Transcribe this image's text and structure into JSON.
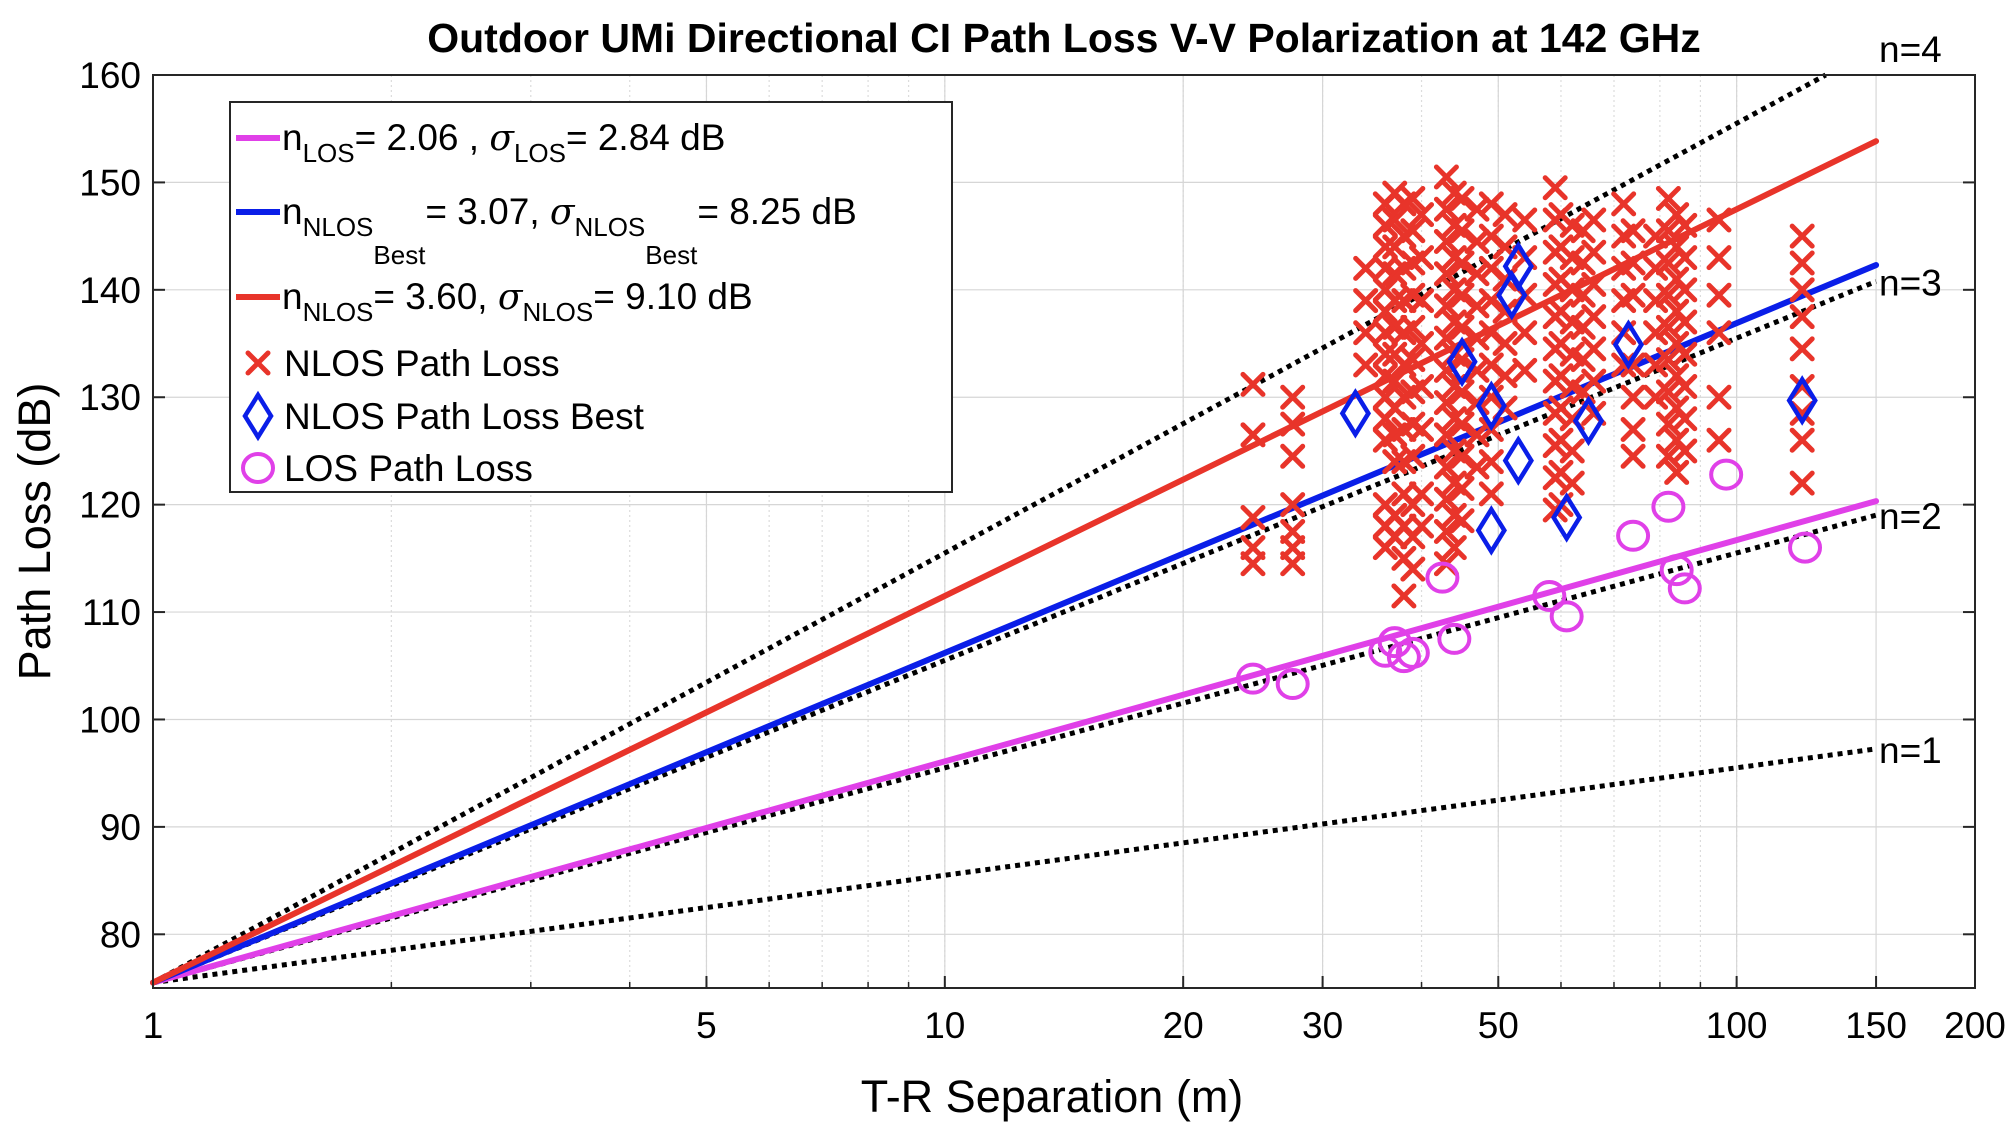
{
  "chart_data": {
    "type": "scatter",
    "title": "Outdoor UMi Directional CI Path Loss V-V Polarization at 142 GHz",
    "xlabel": "T-R Separation (m)",
    "ylabel": "Path Loss (dB)",
    "x_scale": "log",
    "xlim": [
      1,
      200
    ],
    "ylim": [
      75,
      160
    ],
    "x_ticks": [
      1,
      5,
      10,
      20,
      30,
      50,
      100,
      150,
      200
    ],
    "y_ticks": [
      80,
      90,
      100,
      110,
      120,
      130,
      140,
      150,
      160
    ],
    "grid": true,
    "legend_position": "top-left",
    "fspl_1m_db": 75.5,
    "reference_lines": [
      {
        "label": "n=1",
        "n": 1,
        "color": "#000000"
      },
      {
        "label": "n=2",
        "n": 2,
        "color": "#000000"
      },
      {
        "label": "n=3",
        "n": 3,
        "color": "#000000"
      },
      {
        "label": "n=4",
        "n": 4,
        "color": "#000000"
      }
    ],
    "fit_lines": [
      {
        "n": 2.06,
        "sigma_db": 2.84,
        "color": "#e040e8",
        "x_range": [
          1,
          150
        ],
        "legend": {
          "pre": "n",
          "sub": "LOS",
          "mid": "= 2.06 , ",
          "sigma": "σ",
          "sub2": "LOS",
          "post": "= 2.84 dB"
        }
      },
      {
        "n": 3.07,
        "sigma_db": 8.25,
        "color": "#0a1ee8",
        "x_range": [
          1,
          150
        ],
        "legend": {
          "pre": "n",
          "sub": "NLOS",
          "subsub": "Best",
          "mid": "= 3.07,  ",
          "sigma": "σ",
          "sub2": "NLOS",
          "subsub2": "Best",
          "post": "= 8.25 dB"
        }
      },
      {
        "n": 3.6,
        "sigma_db": 9.1,
        "color": "#e8342a",
        "x_range": [
          1,
          150
        ],
        "legend": {
          "pre": "n",
          "sub": "NLOS",
          "mid": "= 3.60,  ",
          "sigma": "σ",
          "sub2": "NLOS",
          "post": "= 9.10 dB"
        }
      }
    ],
    "series": [
      {
        "name": "NLOS Path Loss",
        "marker": "x",
        "color": "#e8342a",
        "points": [
          [
            24.5,
            131.2
          ],
          [
            24.5,
            126.5
          ],
          [
            24.5,
            118.8
          ],
          [
            24.5,
            116.0
          ],
          [
            24.5,
            114.5
          ],
          [
            27.5,
            130.0
          ],
          [
            27.5,
            127.5
          ],
          [
            27.5,
            124.5
          ],
          [
            27.5,
            120.0
          ],
          [
            27.5,
            117.5
          ],
          [
            27.5,
            116.0
          ],
          [
            27.5,
            114.5
          ],
          [
            34,
            142.0
          ],
          [
            34,
            139.0
          ],
          [
            34,
            136.0
          ],
          [
            34,
            133.0
          ],
          [
            36,
            148.0
          ],
          [
            36,
            146.0
          ],
          [
            36,
            144.0
          ],
          [
            36,
            142.0
          ],
          [
            36,
            140.0
          ],
          [
            36,
            138.0
          ],
          [
            36,
            136.0
          ],
          [
            36,
            134.0
          ],
          [
            36,
            132.0
          ],
          [
            36,
            130.0
          ],
          [
            36,
            128.0
          ],
          [
            36,
            126.0
          ],
          [
            36,
            120.0
          ],
          [
            36,
            118.0
          ],
          [
            36,
            116.0
          ],
          [
            37,
            149.0
          ],
          [
            37,
            146.5
          ],
          [
            37,
            144.0
          ],
          [
            37,
            141.5
          ],
          [
            37,
            139.0
          ],
          [
            37,
            136.5
          ],
          [
            37,
            134.0
          ],
          [
            37,
            131.5
          ],
          [
            37,
            129.0
          ],
          [
            37,
            126.5
          ],
          [
            37,
            124.0
          ],
          [
            37,
            119.0
          ],
          [
            37,
            117.0
          ],
          [
            38,
            148.0
          ],
          [
            38,
            145.0
          ],
          [
            38,
            142.0
          ],
          [
            38,
            139.0
          ],
          [
            38,
            136.0
          ],
          [
            38,
            133.0
          ],
          [
            38,
            130.0
          ],
          [
            38,
            127.0
          ],
          [
            38,
            124.0
          ],
          [
            38,
            121.0
          ],
          [
            38,
            118.0
          ],
          [
            38,
            115.0
          ],
          [
            38,
            111.5
          ],
          [
            39,
            148.5
          ],
          [
            39,
            145.5
          ],
          [
            39,
            142.5
          ],
          [
            39,
            139.5
          ],
          [
            39,
            136.5
          ],
          [
            39,
            133.5
          ],
          [
            39,
            130.5
          ],
          [
            39,
            127.5
          ],
          [
            39,
            124.5
          ],
          [
            39,
            120.0
          ],
          [
            39,
            117.0
          ],
          [
            39,
            114.0
          ],
          [
            40,
            147.0
          ],
          [
            40,
            143.0
          ],
          [
            40,
            139.0
          ],
          [
            40,
            135.0
          ],
          [
            40,
            131.0
          ],
          [
            40,
            127.0
          ],
          [
            40,
            121.0
          ],
          [
            40,
            118.0
          ],
          [
            43,
            150.5
          ],
          [
            43,
            147.5
          ],
          [
            43,
            144.5
          ],
          [
            43,
            141.5
          ],
          [
            43,
            138.5
          ],
          [
            43,
            135.5
          ],
          [
            43,
            132.5
          ],
          [
            43,
            129.5
          ],
          [
            43,
            126.5
          ],
          [
            43,
            123.5
          ],
          [
            43,
            120.5
          ],
          [
            43,
            117.5
          ],
          [
            43,
            114.5
          ],
          [
            44,
            149.0
          ],
          [
            44,
            146.0
          ],
          [
            44,
            143.0
          ],
          [
            44,
            140.0
          ],
          [
            44,
            137.0
          ],
          [
            44,
            134.0
          ],
          [
            44,
            131.0
          ],
          [
            44,
            128.0
          ],
          [
            44,
            125.0
          ],
          [
            44,
            122.0
          ],
          [
            44,
            119.0
          ],
          [
            44,
            116.0
          ],
          [
            45,
            148.5
          ],
          [
            45,
            145.5
          ],
          [
            45,
            142.5
          ],
          [
            45,
            139.5
          ],
          [
            45,
            136.5
          ],
          [
            45,
            133.5
          ],
          [
            45,
            130.5
          ],
          [
            45,
            127.5
          ],
          [
            45,
            124.5
          ],
          [
            45,
            121.5
          ],
          [
            45,
            118.5
          ],
          [
            47,
            147.5
          ],
          [
            47,
            144.5
          ],
          [
            47,
            141.5
          ],
          [
            47,
            138.5
          ],
          [
            47,
            135.5
          ],
          [
            47,
            132.5
          ],
          [
            47,
            129.5
          ],
          [
            47,
            126.5
          ],
          [
            47,
            123.5
          ],
          [
            49,
            148.0
          ],
          [
            49,
            145.0
          ],
          [
            49,
            142.0
          ],
          [
            49,
            139.0
          ],
          [
            49,
            136.0
          ],
          [
            49,
            133.0
          ],
          [
            49,
            130.0
          ],
          [
            49,
            127.0
          ],
          [
            49,
            124.0
          ],
          [
            49,
            121.0
          ],
          [
            51,
            147.0
          ],
          [
            51,
            144.0
          ],
          [
            51,
            141.0
          ],
          [
            51,
            138.0
          ],
          [
            51,
            135.0
          ],
          [
            51,
            132.0
          ],
          [
            51,
            129.0
          ],
          [
            54,
            146.5
          ],
          [
            54,
            143.0
          ],
          [
            54,
            139.5
          ],
          [
            54,
            136.0
          ],
          [
            54,
            132.5
          ],
          [
            59,
            149.5
          ],
          [
            59,
            146.5
          ],
          [
            59,
            143.5
          ],
          [
            59,
            140.5
          ],
          [
            59,
            137.5
          ],
          [
            59,
            134.5
          ],
          [
            59,
            131.5
          ],
          [
            59,
            128.5
          ],
          [
            59,
            125.5
          ],
          [
            59,
            122.5
          ],
          [
            59,
            119.5
          ],
          [
            60,
            147.0
          ],
          [
            60,
            144.0
          ],
          [
            60,
            141.0
          ],
          [
            60,
            138.0
          ],
          [
            60,
            135.0
          ],
          [
            60,
            132.0
          ],
          [
            60,
            129.0
          ],
          [
            60,
            126.0
          ],
          [
            60,
            123.0
          ],
          [
            60,
            120.0
          ],
          [
            62,
            146.0
          ],
          [
            62,
            143.0
          ],
          [
            62,
            140.0
          ],
          [
            62,
            137.0
          ],
          [
            62,
            134.0
          ],
          [
            62,
            131.0
          ],
          [
            62,
            128.0
          ],
          [
            62,
            125.0
          ],
          [
            62,
            122.0
          ],
          [
            64,
            145.5
          ],
          [
            64,
            142.5
          ],
          [
            64,
            139.5
          ],
          [
            64,
            136.5
          ],
          [
            64,
            133.5
          ],
          [
            64,
            130.5
          ],
          [
            66,
            146.5
          ],
          [
            66,
            143.5
          ],
          [
            66,
            140.5
          ],
          [
            66,
            137.5
          ],
          [
            66,
            134.5
          ],
          [
            66,
            131.5
          ],
          [
            66,
            128.5
          ],
          [
            72,
            148.0
          ],
          [
            72,
            145.0
          ],
          [
            72,
            142.0
          ],
          [
            72,
            139.0
          ],
          [
            72,
            136.0
          ],
          [
            72,
            133.0
          ],
          [
            74,
            145.5
          ],
          [
            74,
            142.5
          ],
          [
            74,
            139.5
          ],
          [
            74,
            133.0
          ],
          [
            74,
            130.0
          ],
          [
            74,
            127.0
          ],
          [
            74,
            124.5
          ],
          [
            79,
            145.0
          ],
          [
            79,
            142.0
          ],
          [
            79,
            139.0
          ],
          [
            79,
            136.0
          ],
          [
            79,
            133.0
          ],
          [
            79,
            130.0
          ],
          [
            82,
            148.5
          ],
          [
            82,
            145.5
          ],
          [
            82,
            142.5
          ],
          [
            82,
            139.5
          ],
          [
            82,
            136.5
          ],
          [
            82,
            133.5
          ],
          [
            82,
            130.5
          ],
          [
            82,
            127.5
          ],
          [
            82,
            124.5
          ],
          [
            84,
            147.0
          ],
          [
            84,
            144.0
          ],
          [
            84,
            141.0
          ],
          [
            84,
            138.0
          ],
          [
            84,
            135.0
          ],
          [
            84,
            132.0
          ],
          [
            84,
            129.0
          ],
          [
            84,
            126.0
          ],
          [
            84,
            123.0
          ],
          [
            86,
            146.0
          ],
          [
            86,
            143.0
          ],
          [
            86,
            140.0
          ],
          [
            86,
            137.0
          ],
          [
            86,
            134.0
          ],
          [
            86,
            131.0
          ],
          [
            86,
            128.0
          ],
          [
            86,
            125.0
          ],
          [
            95,
            146.5
          ],
          [
            95,
            143.0
          ],
          [
            95,
            139.5
          ],
          [
            95,
            136.0
          ],
          [
            95,
            130.0
          ],
          [
            95,
            126.0
          ],
          [
            121,
            145.0
          ],
          [
            121,
            142.5
          ],
          [
            121,
            140.0
          ],
          [
            121,
            137.5
          ],
          [
            121,
            134.5
          ],
          [
            121,
            131.0
          ],
          [
            121,
            128.5
          ],
          [
            121,
            126.0
          ],
          [
            121,
            122.0
          ]
        ]
      },
      {
        "name": "NLOS Path Loss Best",
        "marker": "diamond",
        "color": "#0a1ee8",
        "points": [
          [
            33,
            128.5
          ],
          [
            45,
            133.3
          ],
          [
            49,
            129.2
          ],
          [
            49,
            117.6
          ],
          [
            52,
            139.5
          ],
          [
            53,
            142.2
          ],
          [
            53,
            124.1
          ],
          [
            61,
            118.8
          ],
          [
            65,
            127.8
          ],
          [
            73,
            134.9
          ],
          [
            121,
            129.7
          ]
        ]
      },
      {
        "name": "LOS Path Loss",
        "marker": "circle",
        "color": "#e040e8",
        "points": [
          [
            24.5,
            103.8
          ],
          [
            27.5,
            103.3
          ],
          [
            36,
            106.3
          ],
          [
            37,
            107.2
          ],
          [
            38,
            105.8
          ],
          [
            39,
            106.2
          ],
          [
            42.5,
            113.2
          ],
          [
            44,
            107.5
          ],
          [
            58,
            111.5
          ],
          [
            61,
            109.6
          ],
          [
            74,
            117.1
          ],
          [
            82,
            119.8
          ],
          [
            84,
            113.9
          ],
          [
            86,
            112.2
          ],
          [
            97,
            122.8
          ],
          [
            122,
            116.0
          ]
        ]
      }
    ]
  }
}
